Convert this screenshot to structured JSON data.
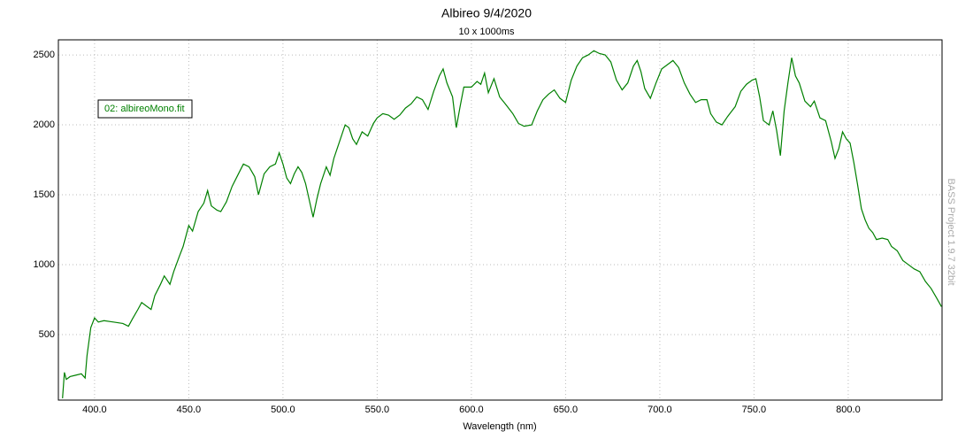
{
  "chart_data": {
    "type": "line",
    "title": "Albireo 9/4/2020",
    "subtitle": "10 x 1000ms",
    "x_label": "Wavelength (nm)",
    "watermark": "BASS Project 1.9.7 32bit",
    "grid": true,
    "xlim": [
      380.8,
      849.8
    ],
    "ylim": [
      32,
      2608
    ],
    "xticks": [
      {
        "value": 400,
        "label": "400.0"
      },
      {
        "value": 450,
        "label": "450.0"
      },
      {
        "value": 500,
        "label": "500.0"
      },
      {
        "value": 550,
        "label": "550.0"
      },
      {
        "value": 600,
        "label": "600.0"
      },
      {
        "value": 650,
        "label": "650.0"
      },
      {
        "value": 700,
        "label": "700.0"
      },
      {
        "value": 750,
        "label": "750.0"
      },
      {
        "value": 800,
        "label": "800.0"
      }
    ],
    "yticks": [
      500,
      1000,
      1500,
      2000,
      2500
    ],
    "x": [
      383,
      384,
      385,
      387,
      390,
      393,
      395,
      396,
      398,
      400,
      402,
      405,
      410,
      415,
      418,
      420,
      423,
      425,
      428,
      430,
      432,
      435,
      437,
      440,
      442,
      445,
      447,
      450,
      452,
      455,
      458,
      460,
      462,
      465,
      467,
      470,
      473,
      476,
      479,
      482,
      485,
      487,
      490,
      493,
      496,
      498,
      500,
      502,
      504,
      506,
      508,
      510,
      512,
      514,
      516,
      518,
      520,
      523,
      525,
      527,
      530,
      533,
      535,
      537,
      539,
      542,
      545,
      548,
      550,
      553,
      556,
      559,
      562,
      565,
      568,
      571,
      574,
      577,
      580,
      583,
      585,
      587,
      590,
      592,
      594,
      596,
      600,
      603,
      605,
      607,
      609,
      612,
      615,
      618,
      622,
      625,
      628,
      632,
      635,
      638,
      641,
      644,
      647,
      650,
      653,
      656,
      659,
      662,
      665,
      668,
      671,
      674,
      677,
      680,
      683,
      686,
      688,
      690,
      692,
      695,
      698,
      701,
      704,
      707,
      710,
      713,
      716,
      719,
      722,
      725,
      727,
      730,
      733,
      736,
      740,
      743,
      746,
      749,
      751,
      753,
      755,
      758,
      760,
      762,
      764,
      766,
      768,
      770,
      772,
      774,
      777,
      780,
      782,
      785,
      788,
      791,
      793,
      795,
      797,
      799,
      801,
      803,
      805,
      807,
      809,
      811,
      813,
      815,
      818,
      821,
      823,
      826,
      829,
      832,
      835,
      838,
      841,
      844,
      847,
      849.5
    ],
    "series": [
      {
        "name": "02: albireoMono.fit",
        "color": "#008000",
        "values": [
          45,
          230,
          180,
          200,
          210,
          220,
          190,
          350,
          550,
          620,
          590,
          600,
          590,
          580,
          560,
          610,
          680,
          730,
          700,
          680,
          780,
          860,
          920,
          860,
          950,
          1060,
          1130,
          1280,
          1240,
          1380,
          1440,
          1530,
          1420,
          1390,
          1380,
          1450,
          1560,
          1640,
          1720,
          1700,
          1630,
          1500,
          1650,
          1700,
          1720,
          1800,
          1720,
          1620,
          1580,
          1650,
          1700,
          1660,
          1580,
          1460,
          1340,
          1470,
          1580,
          1700,
          1640,
          1760,
          1880,
          2000,
          1980,
          1900,
          1860,
          1950,
          1920,
          2010,
          2050,
          2080,
          2070,
          2040,
          2070,
          2120,
          2150,
          2200,
          2180,
          2110,
          2240,
          2350,
          2400,
          2300,
          2200,
          1980,
          2130,
          2270,
          2270,
          2310,
          2290,
          2370,
          2230,
          2330,
          2200,
          2150,
          2080,
          2010,
          1990,
          2000,
          2100,
          2180,
          2220,
          2250,
          2190,
          2160,
          2320,
          2420,
          2480,
          2500,
          2530,
          2510,
          2500,
          2450,
          2320,
          2250,
          2300,
          2420,
          2460,
          2380,
          2260,
          2190,
          2300,
          2400,
          2430,
          2460,
          2410,
          2300,
          2220,
          2160,
          2180,
          2180,
          2080,
          2020,
          2000,
          2060,
          2130,
          2240,
          2290,
          2320,
          2330,
          2200,
          2030,
          2000,
          2100,
          1960,
          1780,
          2100,
          2300,
          2480,
          2350,
          2300,
          2170,
          2130,
          2170,
          2050,
          2030,
          1880,
          1760,
          1830,
          1950,
          1900,
          1870,
          1730,
          1570,
          1400,
          1320,
          1260,
          1230,
          1180,
          1190,
          1180,
          1130,
          1100,
          1030,
          1000,
          970,
          950,
          880,
          830,
          760,
          700
        ]
      }
    ]
  }
}
